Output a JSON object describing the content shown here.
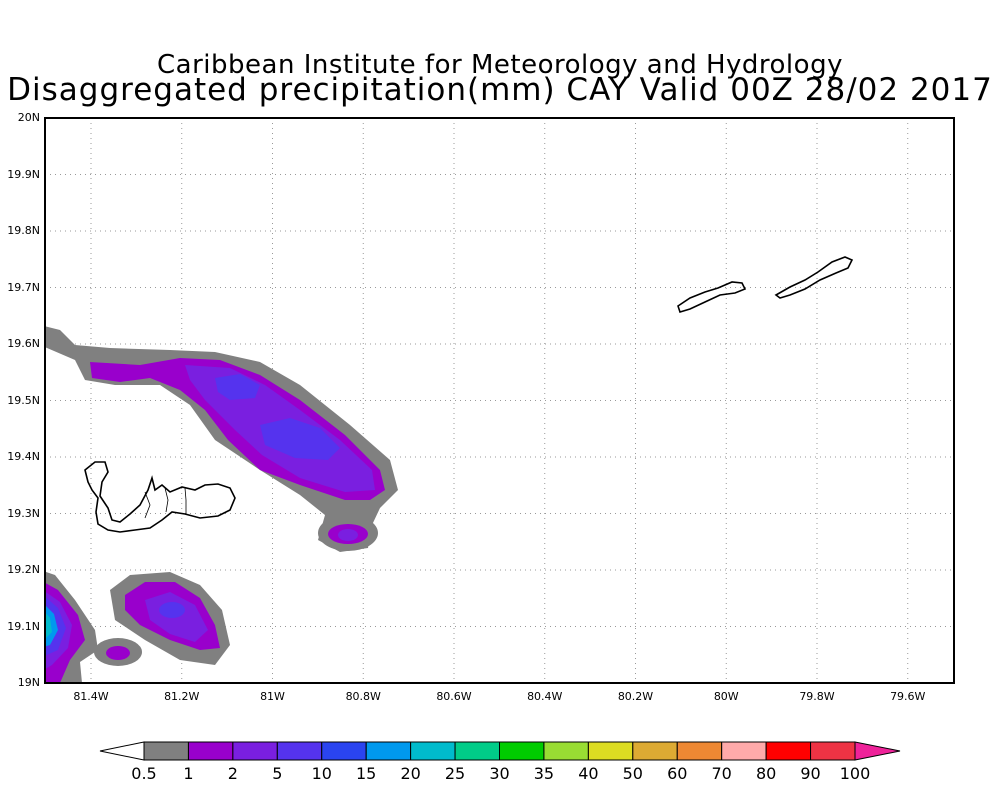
{
  "header": {
    "institute": "Caribbean Institute for Meteorology and Hydrology",
    "product": "Disaggregated precipitation(mm) CAY Valid 00Z 28/02 2017"
  },
  "map": {
    "lat_labels": [
      "20N",
      "19.9N",
      "19.8N",
      "19.7N",
      "19.6N",
      "19.5N",
      "19.4N",
      "19.3N",
      "19.2N",
      "19.1N",
      "19N"
    ],
    "lon_labels": [
      "81.4W",
      "81.2W",
      "81W",
      "80.8W",
      "80.6W",
      "80.4W",
      "80.2W",
      "80W",
      "79.8W",
      "79.6W"
    ],
    "lat_range": [
      19.0,
      20.0
    ],
    "lon_range": [
      -81.5,
      -79.5
    ],
    "islands": [
      "Grand Cayman",
      "Little Cayman",
      "Cayman Brac"
    ],
    "gridlines": "dotted"
  },
  "colorbar": {
    "labels": [
      "0.5",
      "1",
      "2",
      "5",
      "10",
      "15",
      "20",
      "25",
      "30",
      "35",
      "40",
      "50",
      "60",
      "70",
      "80",
      "90",
      "100"
    ],
    "colors": [
      "#808080",
      "#9900cc",
      "#7a1fe0",
      "#5533ee",
      "#2a44f0",
      "#0099ee",
      "#00bbcc",
      "#00cc88",
      "#00cc00",
      "#99dd33",
      "#dddd22",
      "#ddaa33",
      "#ee8833",
      "#ffaaaa",
      "#ff0000",
      "#ee3344",
      "#ee2299"
    ],
    "units": "mm"
  }
}
